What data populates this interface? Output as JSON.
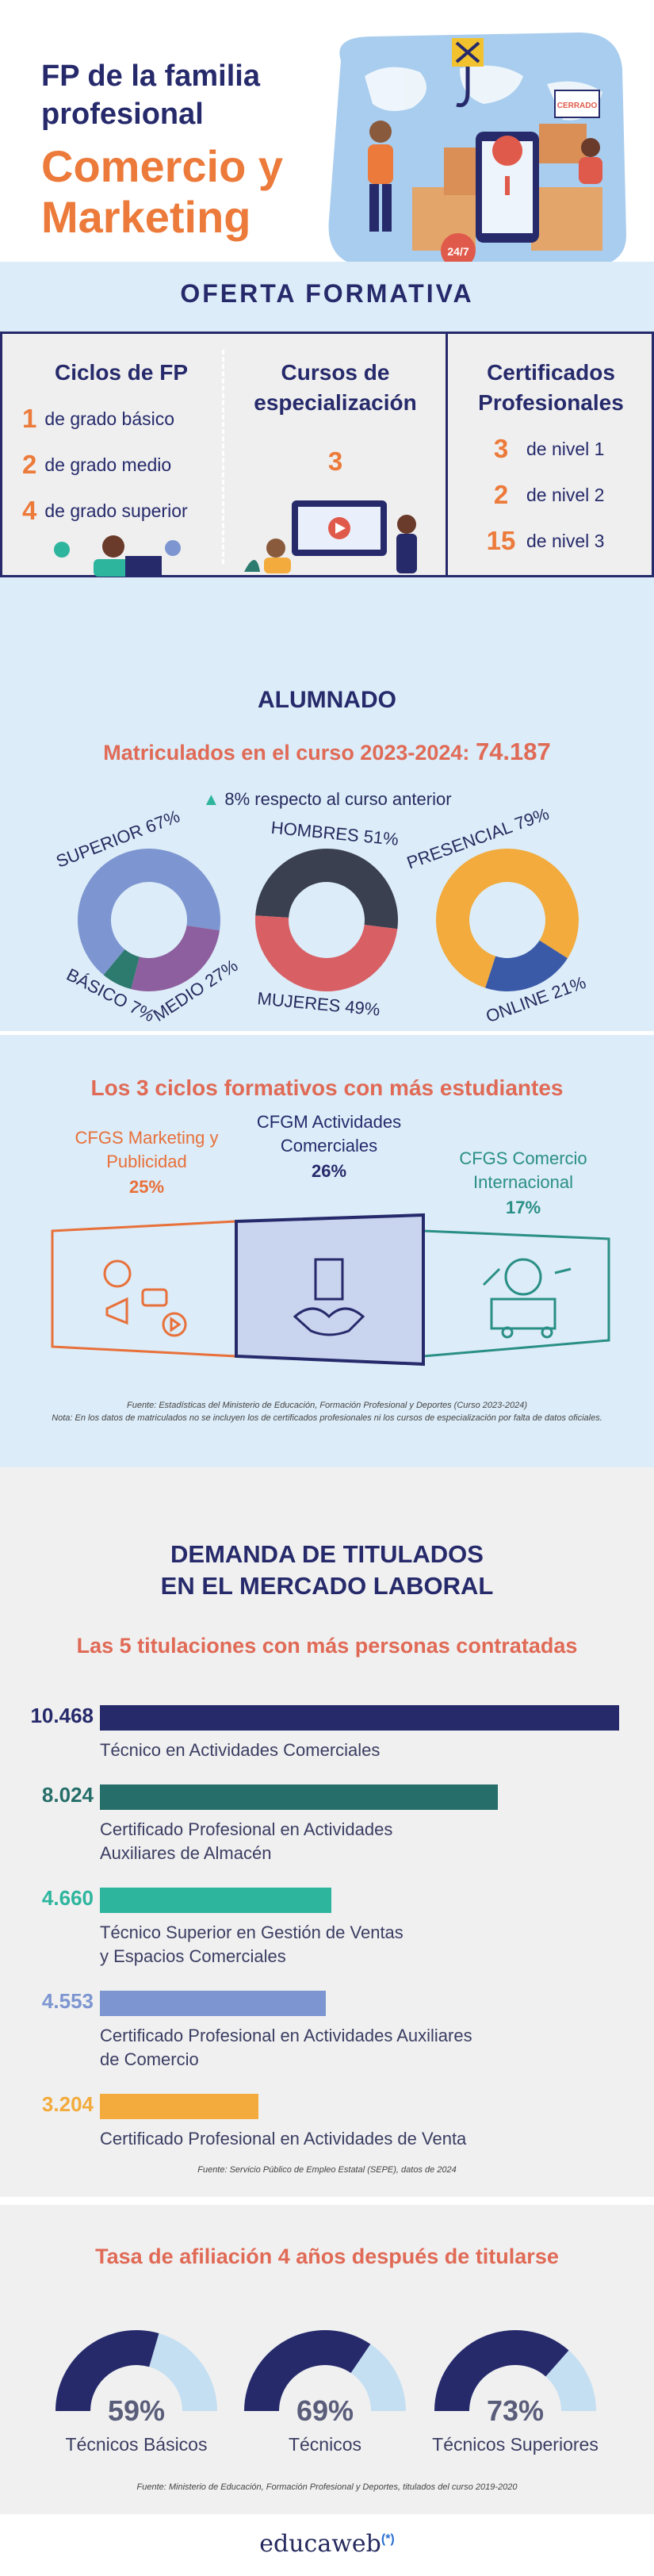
{
  "header": {
    "subtitle": "FP de la familia profesional",
    "title": "Comercio y Marketing",
    "illustration_sign": "CERRADO",
    "badge": "24/7",
    "icon_names": [
      "crane-hook-icon",
      "world-map-icon",
      "phone-map-pin-icon",
      "delivery-person-icon",
      "boxes-icon"
    ]
  },
  "oferta": {
    "title": "OFERTA FORMATIVA",
    "ciclos": {
      "heading": "Ciclos de FP",
      "items": [
        {
          "num": "1",
          "label": "de grado básico"
        },
        {
          "num": "2",
          "label": "de grado medio"
        },
        {
          "num": "4",
          "label": "de grado superior"
        }
      ]
    },
    "cursos": {
      "heading": "Cursos de especialización",
      "num": "3"
    },
    "certificados": {
      "heading": "Certificados Profesionales",
      "items": [
        {
          "num": "3",
          "label": "de nivel 1"
        },
        {
          "num": "2",
          "label": "de nivel 2"
        },
        {
          "num": "15",
          "label": "de nivel 3"
        }
      ]
    }
  },
  "alumnado": {
    "title": "ALUMNADO",
    "matric_label": "Matriculados en el curso 2023-2024:",
    "matric_value": "74.187",
    "change": "8% respecto al curso anterior"
  },
  "ciclos_top": {
    "title": "Los 3 ciclos formativos con más estudiantes",
    "items": [
      {
        "name": "CFGS Marketing y Publicidad",
        "pct": "25%",
        "color": "#e8703a"
      },
      {
        "name": "CFGM Actividades Comerciales",
        "pct": "26%",
        "color": "#262a6b"
      },
      {
        "name": "CFGS Comercio Internacional",
        "pct": "17%",
        "color": "#2a8f86"
      }
    ],
    "source": "Fuente: Estadísticas del Ministerio de Educación, Formación Profesional y Deportes (Curso 2023-2024)",
    "note": "Nota: En los datos de matriculados no se incluyen los de certificados profesionales ni los cursos de especialización por falta de datos oficiales."
  },
  "demanda": {
    "title_line1": "DEMANDA DE TITULADOS",
    "title_line2": "EN EL MERCADO LABORAL",
    "subtitle": "Las 5 titulaciones con más personas contratadas",
    "source": "Fuente: Servicio Público de Empleo Estatal (SEPE), datos de 2024"
  },
  "afiliacion": {
    "title": "Tasa de afiliación 4 años después de titularse",
    "source": "Fuente: Ministerio de Educación, Formación Profesional y Deportes, titulados del curso 2019-2020"
  },
  "footer": {
    "brand": "educaweb",
    "brand_mark": "(*)"
  },
  "chart_data": [
    {
      "type": "pie",
      "subtype": "donut",
      "categories": [
        "SUPERIOR",
        "MEDIO",
        "BÁSICO"
      ],
      "values": [
        67,
        27,
        7
      ],
      "labels": [
        "SUPERIOR 67%",
        "MEDIO 27%",
        "BÁSICO 7%"
      ],
      "colors": [
        "#7d96d1",
        "#8e5f9e",
        "#2d7a6e"
      ]
    },
    {
      "type": "pie",
      "subtype": "donut",
      "categories": [
        "HOMBRES",
        "MUJERES"
      ],
      "values": [
        51,
        49
      ],
      "labels": [
        "HOMBRES 51%",
        "MUJERES 49%"
      ],
      "colors": [
        "#3a4050",
        "#d85f64"
      ]
    },
    {
      "type": "pie",
      "subtype": "donut",
      "categories": [
        "PRESENCIAL",
        "ONLINE"
      ],
      "values": [
        79,
        21
      ],
      "labels": [
        "PRESENCIAL 79%",
        "ONLINE 21%"
      ],
      "colors": [
        "#f2ab3c",
        "#3a5aa8"
      ]
    },
    {
      "type": "bar",
      "orientation": "horizontal",
      "categories": [
        "Técnico en Actividades Comerciales",
        "Certificado Profesional en Actividades\nAuxiliares de Almacén",
        "Técnico Superior en Gestión de Ventas\ny Espacios Comerciales",
        "Certificado Profesional en Actividades Auxiliares\nde Comercio",
        "Certificado Profesional en Actividades de Venta"
      ],
      "values": [
        10468,
        8024,
        4660,
        4553,
        3204
      ],
      "value_labels": [
        "10.468",
        "8.024",
        "4.660",
        "4.553",
        "3.204"
      ],
      "colors": [
        "#262a6b",
        "#256e6a",
        "#2db59e",
        "#7d96d1",
        "#f2ab3c"
      ]
    },
    {
      "type": "pie",
      "subtype": "gauge",
      "categories": [
        "Técnicos Básicos",
        "Técnicos",
        "Técnicos Superiores"
      ],
      "values": [
        59,
        69,
        73
      ],
      "value_labels": [
        "59%",
        "69%",
        "73%"
      ],
      "colors": [
        "#262a6b",
        "#c5dff2"
      ]
    }
  ]
}
